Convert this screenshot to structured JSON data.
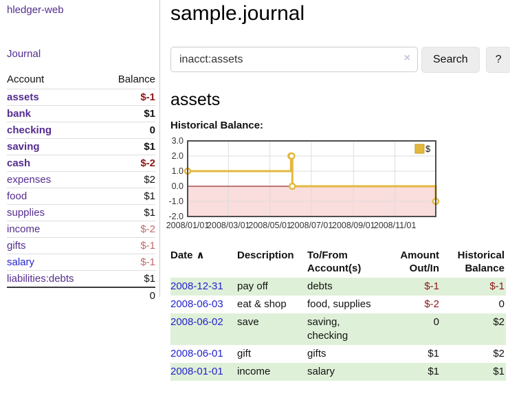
{
  "app": {
    "title": "hledger-web",
    "journal_nav": "Journal"
  },
  "sidebar": {
    "accounts": {
      "account_header": "Account",
      "balance_header": "Balance",
      "rows": [
        {
          "name": "assets",
          "indent": 1,
          "bold": true,
          "link_color": "purple",
          "balance": "$-1",
          "balance_class": "neg-strong"
        },
        {
          "name": "bank",
          "indent": 2,
          "bold": true,
          "link_color": "purple",
          "balance": "$1",
          "balance_class": "pos-strong"
        },
        {
          "name": "checking",
          "indent": 3,
          "bold": true,
          "link_color": "purple",
          "balance": "0",
          "balance_class": "pos-strong"
        },
        {
          "name": "saving",
          "indent": 3,
          "bold": true,
          "link_color": "purple",
          "balance": "$1",
          "balance_class": "pos-strong"
        },
        {
          "name": "cash",
          "indent": 2,
          "bold": true,
          "link_color": "purple",
          "balance": "$-2",
          "balance_class": "neg-strong"
        },
        {
          "name": "expenses",
          "indent": 1,
          "bold": false,
          "link_color": "purple",
          "balance": "$2",
          "balance_class": "pos"
        },
        {
          "name": "food",
          "indent": 2,
          "bold": false,
          "link_color": "purple",
          "balance": "$1",
          "balance_class": "pos"
        },
        {
          "name": "supplies",
          "indent": 2,
          "bold": false,
          "link_color": "purple",
          "balance": "$1",
          "balance_class": "pos"
        },
        {
          "name": "income",
          "indent": 1,
          "bold": false,
          "link_color": "purple",
          "balance": "$-2",
          "balance_class": "neg-soft"
        },
        {
          "name": "gifts",
          "indent": 2,
          "bold": false,
          "link_color": "purple",
          "balance": "$-1",
          "balance_class": "neg-soft"
        },
        {
          "name": "salary",
          "indent": 2,
          "bold": false,
          "link_color": "blue",
          "balance": "$-1",
          "balance_class": "neg-soft"
        },
        {
          "name": "liabilities:debts",
          "indent": 1,
          "bold": false,
          "link_color": "purple",
          "balance": "$1",
          "balance_class": "pos"
        }
      ],
      "total": "0"
    }
  },
  "main": {
    "title": "sample.journal",
    "search": {
      "value": "inacct:assets",
      "clear_icon": "×",
      "submit_label": "Search",
      "help_label": "?"
    },
    "heading": "assets",
    "chart_label": "Historical Balance:"
  },
  "chart_data": {
    "type": "line",
    "title": "Historical Balance:",
    "legend": [
      "$"
    ],
    "legend_position": "top-right",
    "grid": true,
    "step": true,
    "x_range": [
      "2008-01-01",
      "2008-12-31"
    ],
    "ylim": [
      -2.0,
      3.0
    ],
    "y_ticks": [
      "3.0",
      "2.0",
      "1.0",
      "0.0",
      "-1.0",
      "-2.0"
    ],
    "x_tick_labels": [
      "2008/01/01",
      "2008/03/01",
      "2008/05/01",
      "2008/07/01",
      "2008/09/01",
      "2008/11/01"
    ],
    "series": [
      {
        "name": "$",
        "color": "#e3b83d",
        "points": [
          {
            "x": "2008-01-01",
            "y": 1
          },
          {
            "x": "2008-06-01",
            "y": 2
          },
          {
            "x": "2008-06-02",
            "y": 2
          },
          {
            "x": "2008-06-03",
            "y": 0
          },
          {
            "x": "2008-12-31",
            "y": -1
          }
        ]
      }
    ],
    "zero_line_color": "#7a0000",
    "negative_region_fill": "#fadddd",
    "grid_color": "#dddddd",
    "border_color": "#4d4d4d"
  },
  "register": {
    "headers": {
      "date": "Date",
      "sort_indicator": "∧",
      "description": "Description",
      "accounts": "To/From Account(s)",
      "amount": "Amount Out/In",
      "balance": "Historical Balance"
    },
    "rows": [
      {
        "date": "2008-12-31",
        "description": "pay off",
        "accounts": "debts",
        "amount_out_in": "$-1",
        "amount_negative": true,
        "historical_balance": "$-1",
        "balance_negative": true,
        "shaded": true
      },
      {
        "date": "2008-06-03",
        "description": "eat & shop",
        "accounts": "food, supplies",
        "amount_out_in": "$-2",
        "amount_negative": true,
        "historical_balance": "0",
        "balance_negative": false,
        "shaded": false
      },
      {
        "date": "2008-06-02",
        "description": "save",
        "accounts": "saving, checking",
        "amount_out_in": "0",
        "amount_negative": false,
        "historical_balance": "$2",
        "balance_negative": false,
        "shaded": true
      },
      {
        "date": "2008-06-01",
        "description": "gift",
        "accounts": "gifts",
        "amount_out_in": "$1",
        "amount_negative": false,
        "historical_balance": "$2",
        "balance_negative": false,
        "shaded": false
      },
      {
        "date": "2008-01-01",
        "description": "income",
        "accounts": "salary",
        "amount_out_in": "$1",
        "amount_negative": false,
        "historical_balance": "$1",
        "balance_negative": false,
        "shaded": true
      }
    ]
  }
}
